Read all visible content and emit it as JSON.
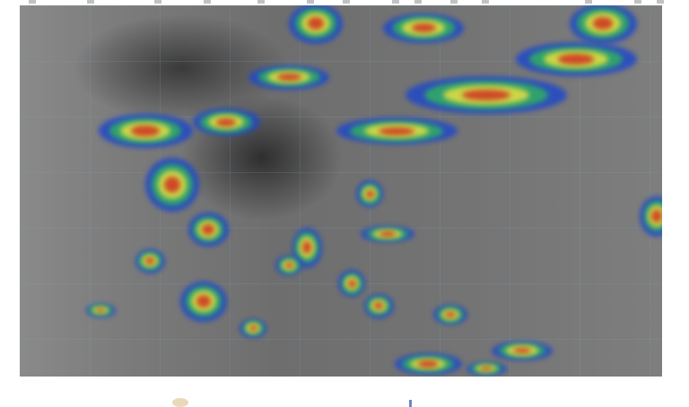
{
  "image": {
    "type": "infrared satellite image",
    "colors": {
      "background": "#777777",
      "cold_cloud_blue": "#2048c8",
      "green": "#30b060",
      "yellow": "#e8e040",
      "red": "#d03020"
    }
  }
}
